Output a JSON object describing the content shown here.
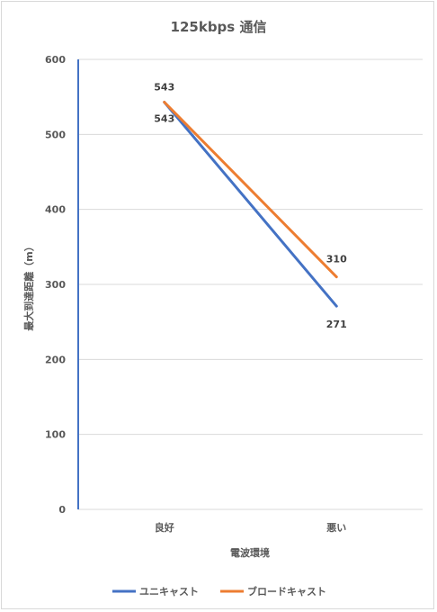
{
  "chart_data": {
    "type": "line",
    "title": "125kbps 通信",
    "xlabel": "電波環境",
    "ylabel": "最大到達距離（m）",
    "categories": [
      "良好",
      "悪い"
    ],
    "ylim": [
      0,
      600
    ],
    "yticks": [
      0,
      100,
      200,
      300,
      400,
      500,
      600
    ],
    "grid": true,
    "legend": "bottom",
    "series": [
      {
        "name": "ユニキャスト",
        "values": [
          543,
          271
        ],
        "color": "#4472C4"
      },
      {
        "name": "ブロードキャスト",
        "values": [
          543,
          310
        ],
        "color": "#ED7D31"
      }
    ]
  }
}
